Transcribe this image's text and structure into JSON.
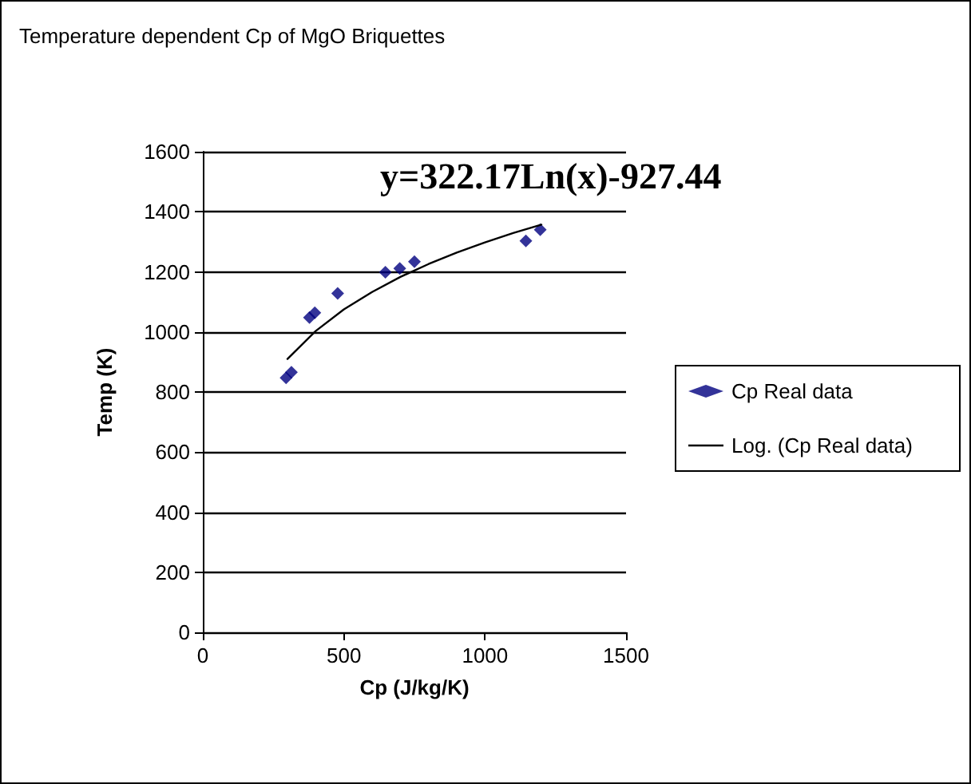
{
  "chart_data": {
    "type": "scatter",
    "title": "Temperature dependent Cp of MgO Briquettes",
    "xlabel": "Cp (J/kg/K)",
    "ylabel": "Temp (K)",
    "annotations": [
      "y=322.17Ln(x)-927.44"
    ],
    "x": [
      295,
      314,
      378,
      397,
      478,
      647,
      698,
      750,
      1145,
      1196
    ],
    "series": [
      {
        "name": "Cp Real data",
        "color": "#000080",
        "values": [
          847,
          866,
          1048,
          1064,
          1128,
          1199,
          1211,
          1234,
          1303,
          1340
        ],
        "marker": "diamond"
      },
      {
        "name": "Log. (Cp Real data)",
        "type": "line",
        "color": "#000000",
        "x": [
          300,
          400,
          500,
          600,
          700,
          800,
          900,
          1000,
          1100,
          1200
        ],
        "values": [
          910,
          1003,
          1075,
          1133,
          1183,
          1226,
          1264,
          1298,
          1329,
          1357
        ],
        "marker": "none",
        "line_style": "solid"
      }
    ],
    "xlim": [
      0,
      1500
    ],
    "xticks": [
      0,
      500,
      1000,
      1500
    ],
    "ylim": [
      0,
      1600
    ],
    "yticks": [
      0,
      200,
      400,
      600,
      800,
      1000,
      1200,
      1400,
      1600
    ],
    "grid": "y",
    "legend": "right"
  }
}
